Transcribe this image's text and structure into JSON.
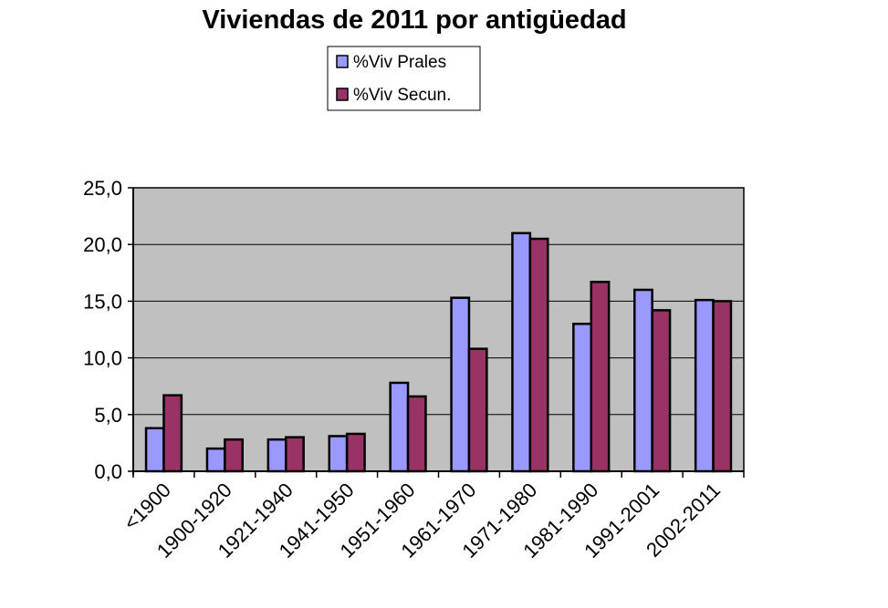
{
  "chart_data": {
    "type": "bar",
    "title": "Viviendas de 2011 por antigüedad",
    "categories": [
      "<1900",
      "1900-1920",
      "1921-1940",
      "1941-1950",
      "1951-1960",
      "1961-1970",
      "1971-1980",
      "1981-1990",
      "1991-2001",
      "2002-2011"
    ],
    "series": [
      {
        "name": "%Viv Prales",
        "color": "#9999ff",
        "values": [
          3.8,
          2.0,
          2.8,
          3.1,
          7.8,
          15.3,
          21.0,
          13.0,
          16.0,
          15.1
        ]
      },
      {
        "name": "%Viv Secun.",
        "color": "#993366",
        "values": [
          6.7,
          2.8,
          3.0,
          3.3,
          6.6,
          10.8,
          20.5,
          16.7,
          14.2,
          15.0
        ]
      }
    ],
    "yticks": [
      "0,0",
      "5,0",
      "10,0",
      "15,0",
      "20,0",
      "25,0"
    ],
    "ylim": [
      0,
      25
    ],
    "xlabel": "",
    "ylabel": "",
    "grid": true,
    "legend": "top-center",
    "plot_background": "#c0c0c0"
  }
}
